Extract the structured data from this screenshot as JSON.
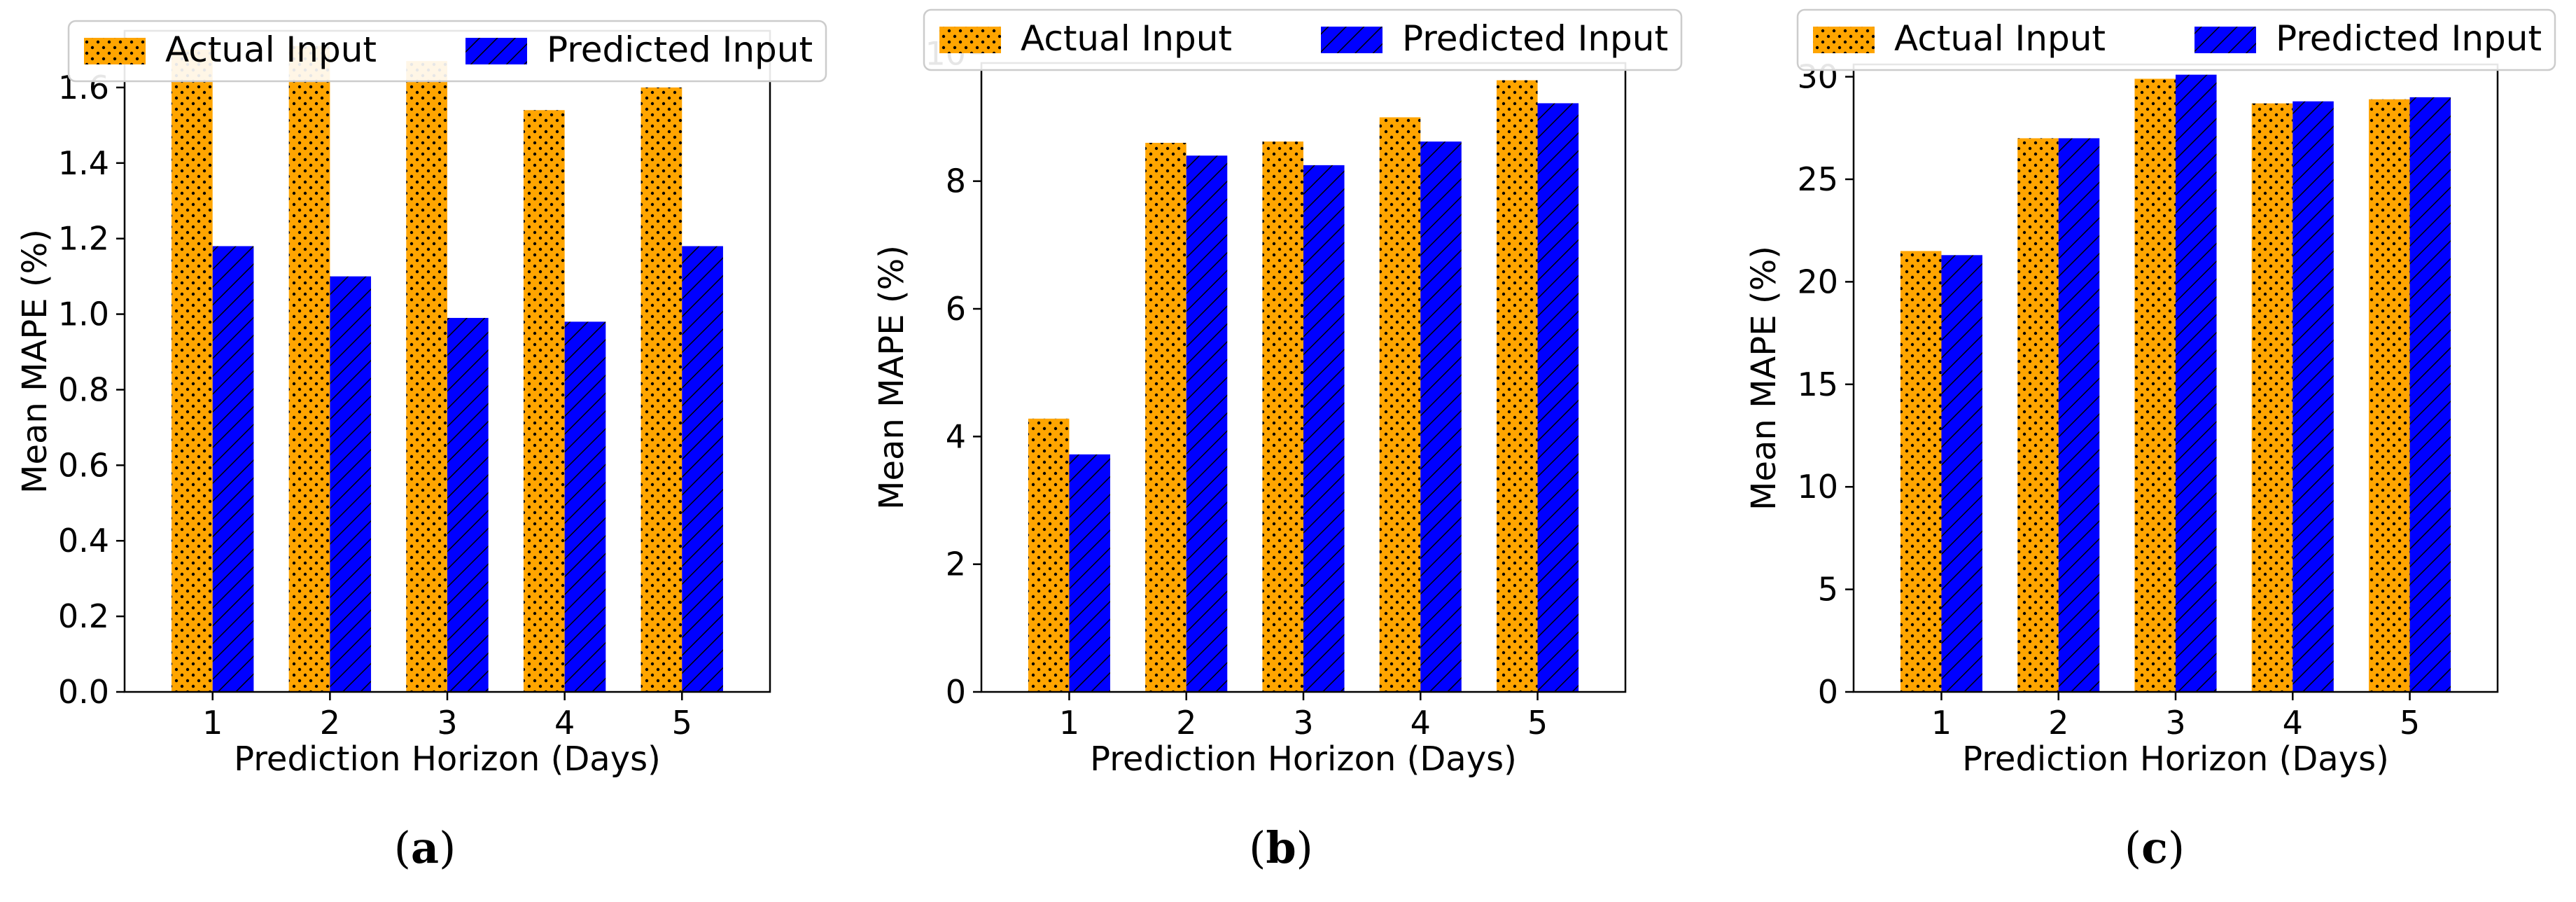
{
  "colors": {
    "actual": "#FFA500",
    "predicted": "#0000FF",
    "edge": "#000000"
  },
  "chart_data": [
    {
      "type": "bar",
      "caption_letter": "a",
      "categories": [
        "1",
        "2",
        "3",
        "4",
        "5"
      ],
      "xlabel": "Prediction Horizon (Days)",
      "ylabel": "Mean MAPE (%)",
      "ylim": [
        0,
        1.75
      ],
      "yticks": [
        "0.0",
        "0.2",
        "0.4",
        "0.6",
        "0.8",
        "1.0",
        "1.2",
        "1.4",
        "1.6"
      ],
      "series": [
        {
          "name": "Actual Input",
          "values": [
            1.7,
            1.71,
            1.67,
            1.54,
            1.6
          ]
        },
        {
          "name": "Predicted Input",
          "values": [
            1.18,
            1.1,
            0.99,
            0.98,
            1.18
          ]
        }
      ]
    },
    {
      "type": "bar",
      "caption_letter": "b",
      "categories": [
        "1",
        "2",
        "3",
        "4",
        "5"
      ],
      "xlabel": "Prediction Horizon (Days)",
      "ylabel": "Mean MAPE (%)",
      "ylim": [
        0,
        9.85
      ],
      "yticks": [
        "0",
        "2",
        "4",
        "6",
        "8",
        "10"
      ],
      "series": [
        {
          "name": "Actual Input",
          "values": [
            4.28,
            8.6,
            8.62,
            9.0,
            9.58
          ]
        },
        {
          "name": "Predicted Input",
          "values": [
            3.72,
            8.4,
            8.25,
            8.62,
            9.22
          ]
        }
      ]
    },
    {
      "type": "bar",
      "caption_letter": "c",
      "categories": [
        "1",
        "2",
        "3",
        "4",
        "5"
      ],
      "xlabel": "Prediction Horizon (Days)",
      "ylabel": "Mean MAPE (%)",
      "ylim": [
        0,
        30.6
      ],
      "yticks": [
        "0",
        "5",
        "10",
        "15",
        "20",
        "25",
        "30"
      ],
      "series": [
        {
          "name": "Actual Input",
          "values": [
            21.5,
            27.0,
            29.9,
            28.7,
            28.9
          ]
        },
        {
          "name": "Predicted Input",
          "values": [
            21.3,
            27.0,
            30.1,
            28.8,
            29.0
          ]
        }
      ]
    }
  ]
}
